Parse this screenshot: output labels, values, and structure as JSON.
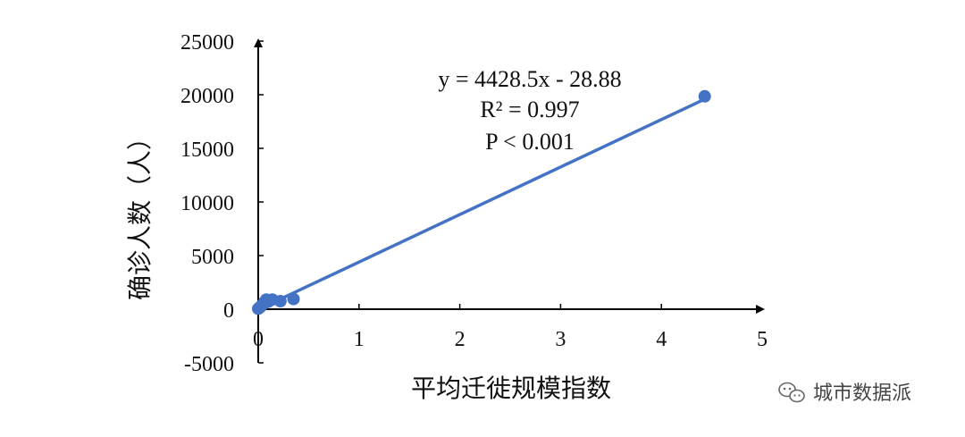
{
  "chart_data": {
    "type": "scatter",
    "xlabel": "平均迁徙规模指数",
    "ylabel": "确诊人数（人）",
    "xlim": [
      0,
      5
    ],
    "ylim": [
      -5000,
      25000
    ],
    "x_ticks": [
      "0",
      "1",
      "2",
      "3",
      "4",
      "5"
    ],
    "y_ticks": [
      "-5000",
      "0",
      "5000",
      "10000",
      "15000",
      "20000",
      "25000"
    ],
    "grid": false,
    "points": [
      {
        "x": 0.0,
        "y": 50
      },
      {
        "x": 0.01,
        "y": 120
      },
      {
        "x": 0.02,
        "y": 200
      },
      {
        "x": 0.03,
        "y": 300
      },
      {
        "x": 0.05,
        "y": 500
      },
      {
        "x": 0.06,
        "y": 650
      },
      {
        "x": 0.08,
        "y": 900
      },
      {
        "x": 0.1,
        "y": 700
      },
      {
        "x": 0.14,
        "y": 900
      },
      {
        "x": 0.22,
        "y": 750
      },
      {
        "x": 0.35,
        "y": 950
      },
      {
        "x": 4.43,
        "y": 19850
      }
    ],
    "trendline": {
      "slope": 4428.5,
      "intercept": -28.88,
      "x_range": [
        0.2,
        4.43
      ]
    },
    "annotations": [
      "y = 4428.5x - 28.88",
      "R² = 0.997",
      "P < 0.001"
    ],
    "color": "#4472C4"
  },
  "watermark": {
    "text": "城市数据派",
    "icon": "wechat-icon"
  }
}
